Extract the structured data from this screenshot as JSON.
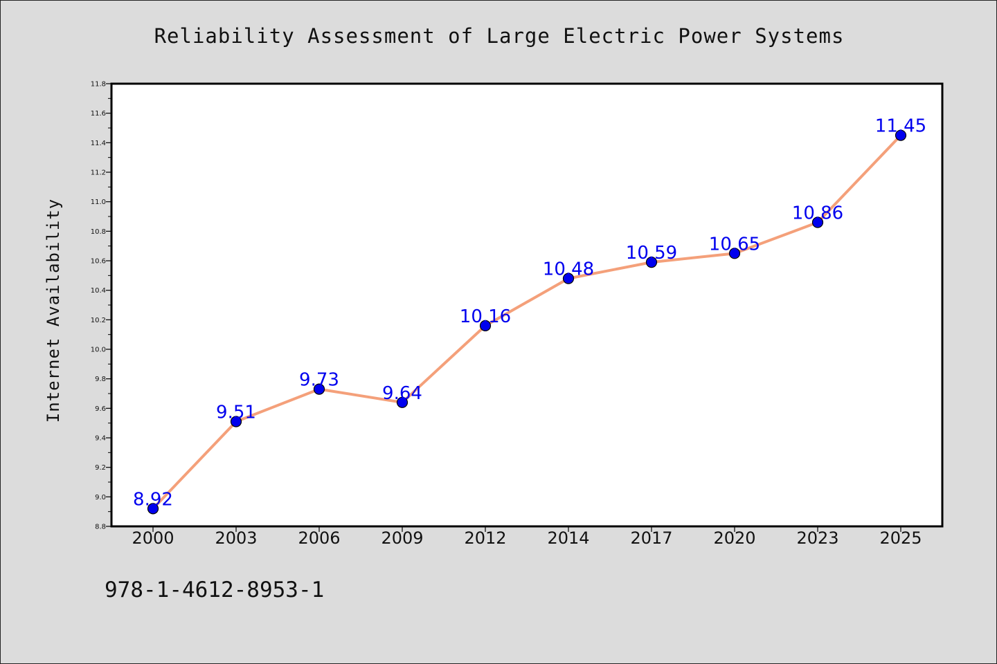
{
  "chart_data": {
    "type": "line",
    "title": "Reliability Assessment of Large Electric Power Systems",
    "xlabel": "",
    "ylabel": "Internet Availability",
    "categories": [
      "2000",
      "2003",
      "2006",
      "2009",
      "2012",
      "2014",
      "2017",
      "2020",
      "2023",
      "2025"
    ],
    "values": [
      8.92,
      9.51,
      9.73,
      9.64,
      10.16,
      10.48,
      10.59,
      10.65,
      10.86,
      11.45
    ],
    "data_labels": [
      "8.92",
      "9.51",
      "9.73",
      "9.64",
      "10.16",
      "10.48",
      "10.59",
      "10.65",
      "10.86",
      "11.45"
    ],
    "ylim": [
      8.8,
      11.8
    ],
    "y_ticks": [
      "8.8",
      "9.0",
      "9.2",
      "9.4",
      "9.6",
      "9.8",
      "10.0",
      "10.2",
      "10.4",
      "10.6",
      "10.8",
      "11.0",
      "11.2",
      "11.4",
      "11.6",
      "11.8"
    ],
    "grid": false,
    "legend": "none",
    "line_color": "#f4a07a",
    "marker_color": "#0000ee",
    "label_color": "#0000ee",
    "plot_background": "#ffffff",
    "figure_background": "#dcdcdc"
  },
  "footer": {
    "isbn": "978-1-4612-8953-1"
  }
}
